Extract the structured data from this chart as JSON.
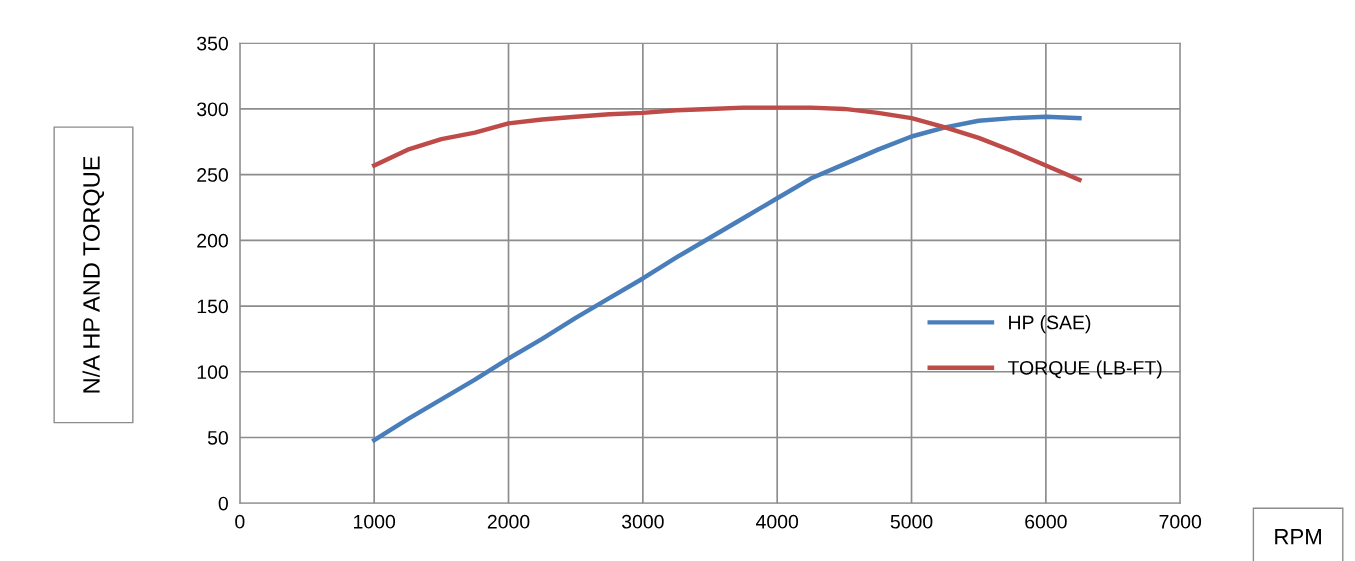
{
  "chart_data": {
    "type": "line",
    "xlabel": "RPM",
    "ylabel": "N/A HP AND TORQUE",
    "x": [
      1000,
      1250,
      1500,
      1750,
      2000,
      2250,
      2500,
      2750,
      3000,
      3250,
      3500,
      3750,
      4000,
      4250,
      4500,
      4750,
      5000,
      5250,
      5500,
      5750,
      6000,
      6250
    ],
    "series": [
      {
        "name": "HP (SAE)",
        "color": "#4a7ebb",
        "values": [
          48,
          64,
          79,
          94,
          110,
          125,
          141,
          156,
          171,
          187,
          202,
          217,
          232,
          247,
          258,
          269,
          279,
          286,
          291,
          293,
          294,
          293
        ]
      },
      {
        "name": "TORQUE (LB-FT)",
        "color": "#be4b48",
        "values": [
          257,
          269,
          277,
          282,
          289,
          292,
          294,
          296,
          297,
          299,
          300,
          301,
          301,
          301,
          300,
          297,
          293,
          286,
          278,
          268,
          257,
          246
        ]
      }
    ],
    "xlim": [
      0,
      7000
    ],
    "xticks": [
      0,
      1000,
      2000,
      3000,
      4000,
      5000,
      6000,
      7000
    ],
    "ylim": [
      0,
      350
    ],
    "yticks": [
      0,
      50,
      100,
      150,
      200,
      250,
      300,
      350
    ],
    "grid": true,
    "legend": "center right",
    "marker": "none",
    "line_style": "solid"
  }
}
